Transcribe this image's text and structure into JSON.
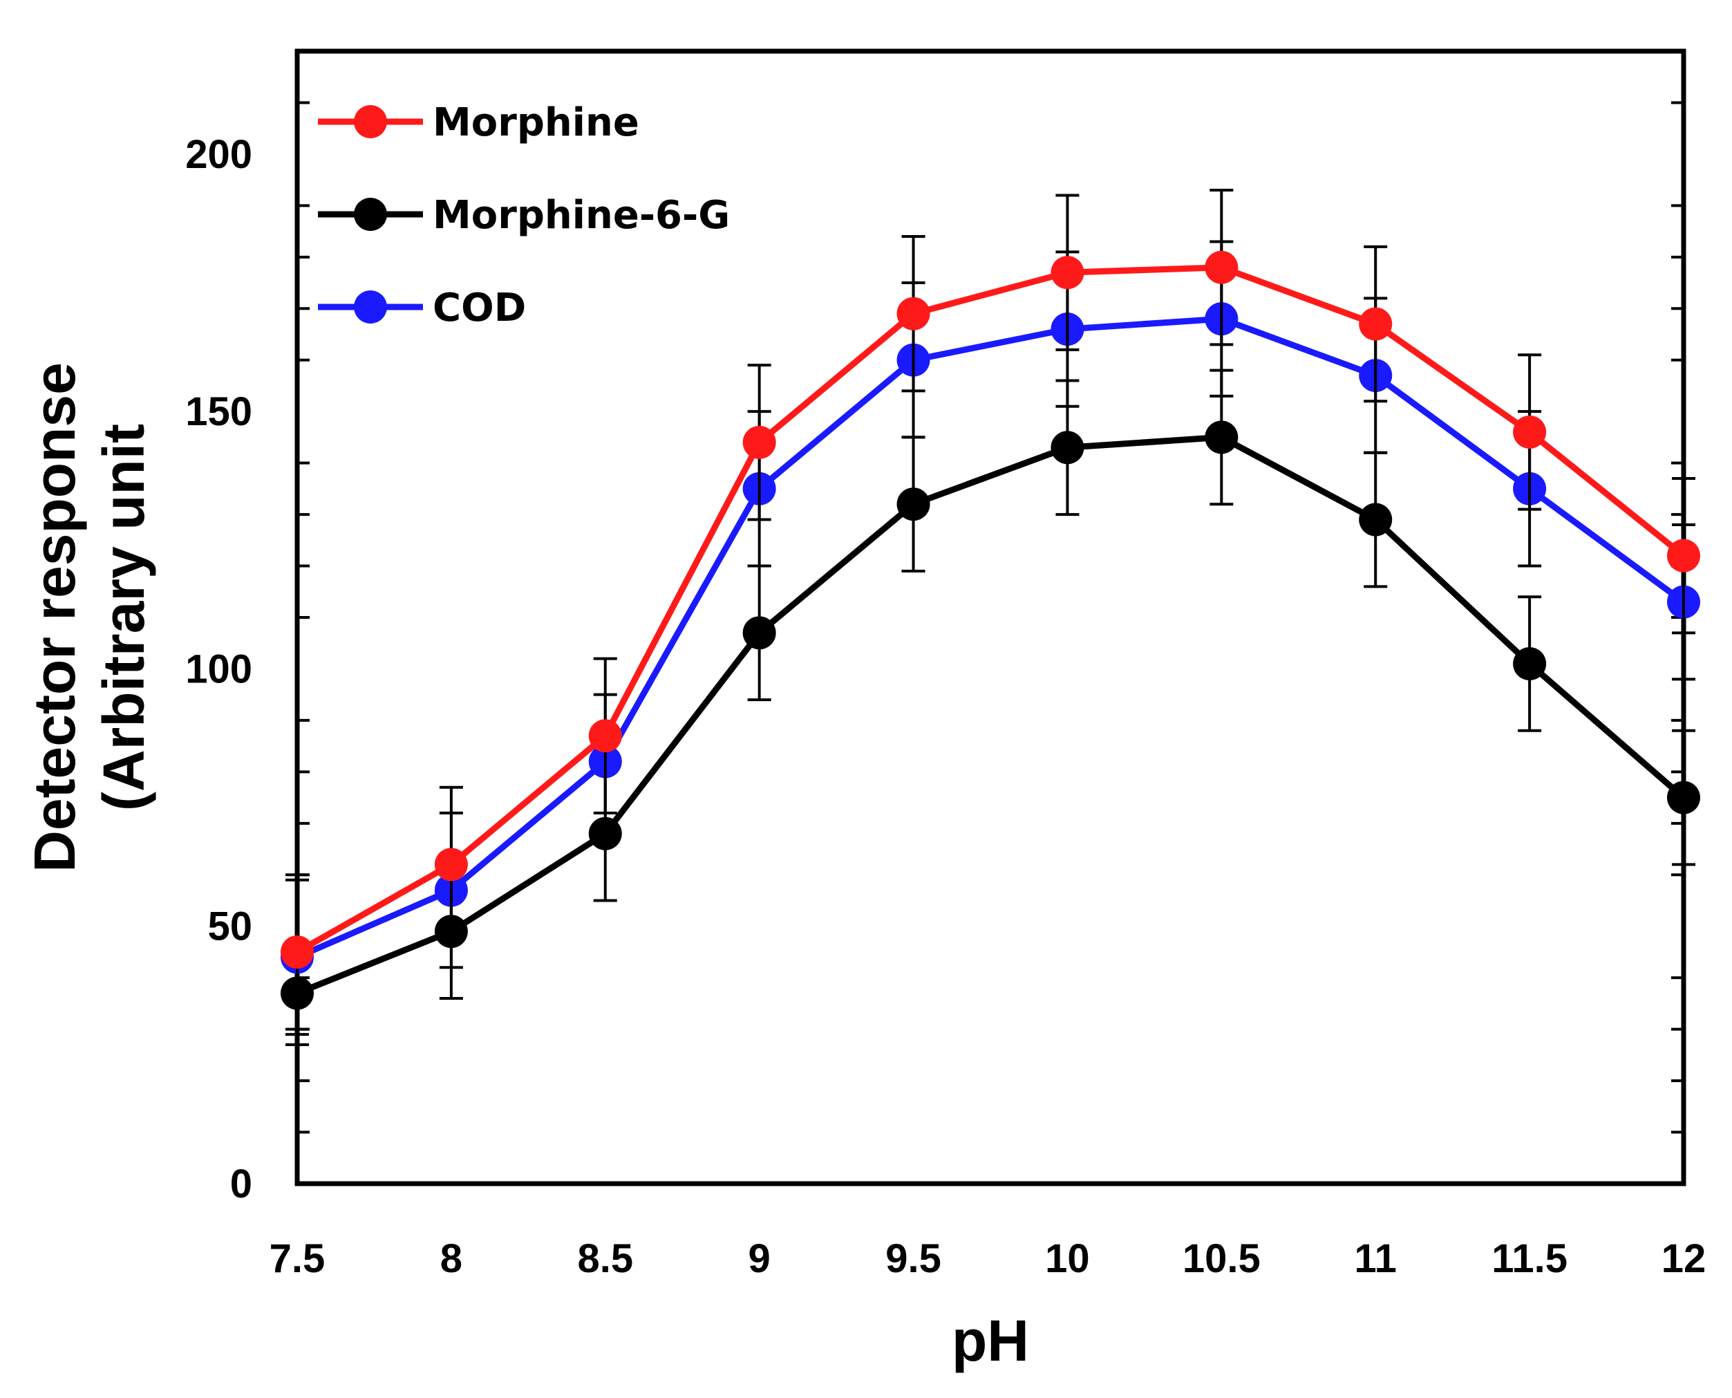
{
  "chart_data": {
    "type": "line",
    "title": "",
    "xlabel": "pH",
    "ylabel_lines": [
      "Detector response",
      "(Arbitrary unit"
    ],
    "x": [
      7.5,
      8,
      8.5,
      9,
      9.5,
      10,
      10.5,
      11,
      11.5,
      12
    ],
    "x_tick_labels": [
      "7.5",
      "8",
      "8.5",
      "9",
      "9.5",
      "10",
      "10.5",
      "11",
      "11.5",
      "12"
    ],
    "xlim": [
      7.5,
      12
    ],
    "y_ticks": [
      0,
      50,
      100,
      150,
      200
    ],
    "y_tick_labels": [
      "0",
      "50",
      "100",
      "150",
      "200"
    ],
    "ylim": [
      0,
      220
    ],
    "grid": false,
    "legend_position": "top-left",
    "series": [
      {
        "name": "Morphine",
        "color": "#ff1a1a",
        "values": [
          45,
          62,
          87,
          144,
          169,
          177,
          178,
          167,
          146,
          122
        ],
        "errors": [
          15,
          15,
          15,
          15,
          15,
          15,
          15,
          15,
          15,
          15
        ]
      },
      {
        "name": "Morphine-6-G",
        "color": "#000000",
        "values": [
          37,
          49,
          68,
          107,
          132,
          143,
          145,
          129,
          101,
          75
        ],
        "errors": [
          10,
          13,
          13,
          13,
          13,
          13,
          13,
          13,
          13,
          13
        ]
      },
      {
        "name": "COD",
        "color": "#1a1aff",
        "values": [
          44,
          57,
          82,
          135,
          160,
          166,
          168,
          157,
          135,
          113
        ],
        "errors": [
          15,
          15,
          13,
          15,
          15,
          15,
          15,
          15,
          15,
          15
        ]
      }
    ]
  }
}
